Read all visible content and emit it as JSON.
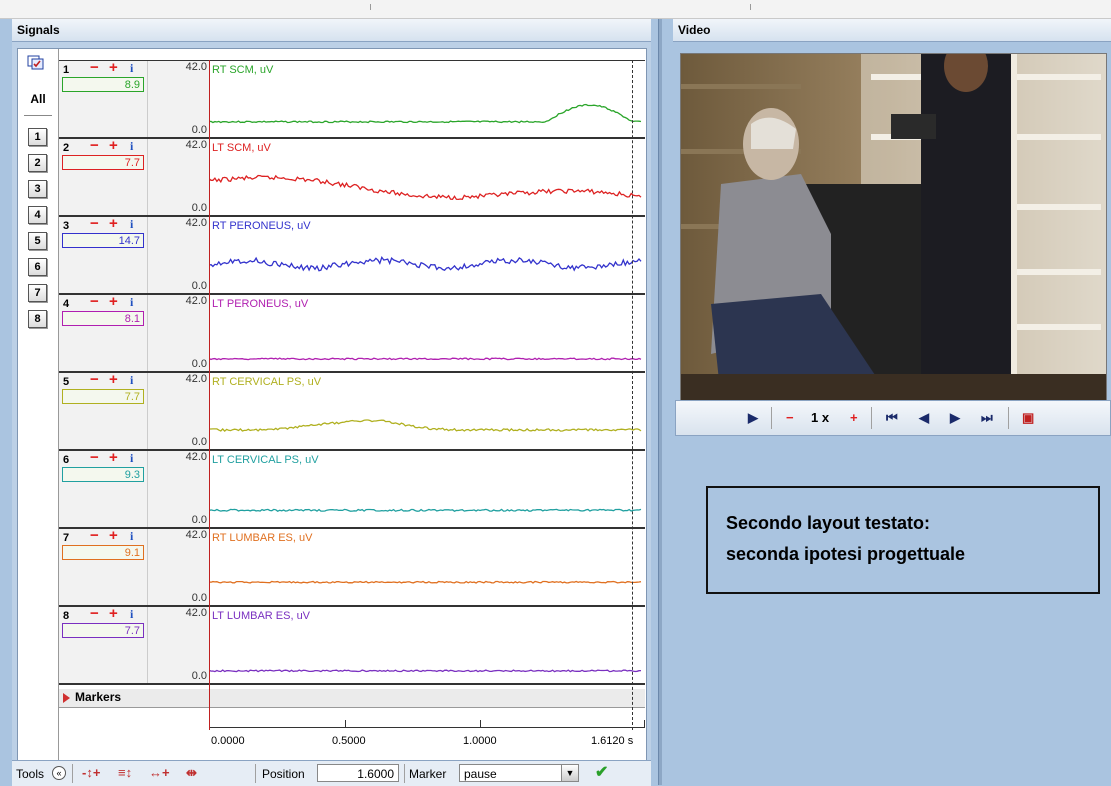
{
  "signals_panel": {
    "title": "Signals",
    "all_label": "All",
    "channel_buttons": [
      "1",
      "2",
      "3",
      "4",
      "5",
      "6",
      "7",
      "8"
    ]
  },
  "channels": [
    {
      "num": "1",
      "value": "8.9",
      "scale_max": "42.0",
      "scale_min": "0.0",
      "label": "RT SCM, uV",
      "color": "#2aa52a",
      "box": "#2aa52a"
    },
    {
      "num": "2",
      "value": "7.7",
      "scale_max": "42.0",
      "scale_min": "0.0",
      "label": "LT SCM, uV",
      "color": "#dd2222",
      "box": "#dd2222"
    },
    {
      "num": "3",
      "value": "14.7",
      "scale_max": "42.0",
      "scale_min": "0.0",
      "label": "RT PERONEUS, uV",
      "color": "#3333cc",
      "box": "#3333cc"
    },
    {
      "num": "4",
      "value": "8.1",
      "scale_max": "42.0",
      "scale_min": "0.0",
      "label": "LT PERONEUS, uV",
      "color": "#b020b0",
      "box": "#b020b0"
    },
    {
      "num": "5",
      "value": "7.7",
      "scale_max": "42.0",
      "scale_min": "0.0",
      "label": "RT CERVICAL PS, uV",
      "color": "#b0b020",
      "box": "#b0b020"
    },
    {
      "num": "6",
      "value": "9.3",
      "scale_max": "42.0",
      "scale_min": "0.0",
      "label": "LT CERVICAL PS, uV",
      "color": "#20a0a0",
      "box": "#20a0a0"
    },
    {
      "num": "7",
      "value": "9.1",
      "scale_max": "42.0",
      "scale_min": "0.0",
      "label": "RT LUMBAR ES, uV",
      "color": "#e07020",
      "box": "#e07020"
    },
    {
      "num": "8",
      "value": "7.7",
      "scale_max": "42.0",
      "scale_min": "0.0",
      "label": "LT LUMBAR ES, uV",
      "color": "#7a30c0",
      "box": "#7a30c0"
    }
  ],
  "markers_label": "Markers",
  "time_axis": {
    "ticks": [
      "0.0000",
      "0.5000",
      "1.0000",
      "1.6120 s"
    ]
  },
  "toolbar": {
    "tools_label": "Tools",
    "position_label": "Position",
    "position_value": "1.6000",
    "marker_label": "Marker",
    "marker_value": "pause"
  },
  "video_panel": {
    "title": "Video",
    "speed": "1 x"
  },
  "note": {
    "line1": "Secondo layout testato:",
    "line2": "seconda ipotesi progettuale"
  },
  "icons": {
    "play": "play-icon",
    "decrease": "minus-icon",
    "increase": "plus-icon",
    "first": "skip-first-icon",
    "prev": "step-back-icon",
    "next": "step-forward-icon",
    "last": "skip-last-icon",
    "export": "export-icon",
    "confirm": "check-icon"
  }
}
